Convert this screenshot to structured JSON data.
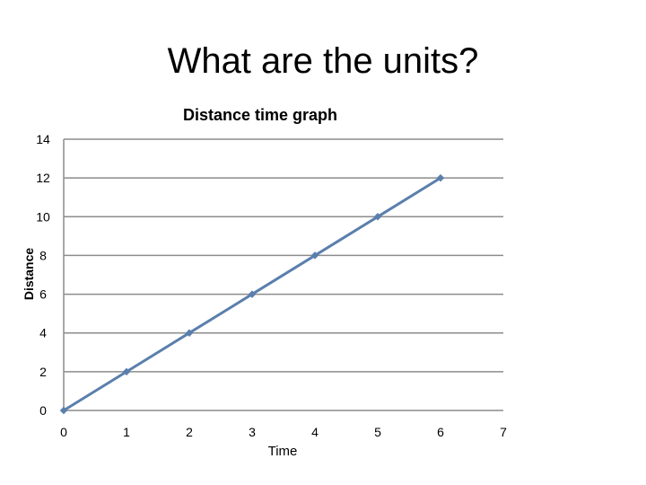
{
  "slide": {
    "title": "What are the units?"
  },
  "chart_data": {
    "type": "line",
    "title": "Distance time graph",
    "xlabel": "Time",
    "ylabel": "Distance",
    "x": [
      0,
      1,
      2,
      3,
      4,
      5,
      6
    ],
    "series": [
      {
        "values": [
          0,
          2,
          4,
          6,
          8,
          10,
          12
        ],
        "color": "#5a7fad"
      }
    ],
    "xlim": [
      0,
      7
    ],
    "ylim": [
      0,
      14
    ],
    "xticks": [
      0,
      1,
      2,
      3,
      4,
      5,
      6,
      7
    ],
    "yticks": [
      0,
      2,
      4,
      6,
      8,
      10,
      12,
      14
    ],
    "grid": "horizontal",
    "legend": "none"
  }
}
